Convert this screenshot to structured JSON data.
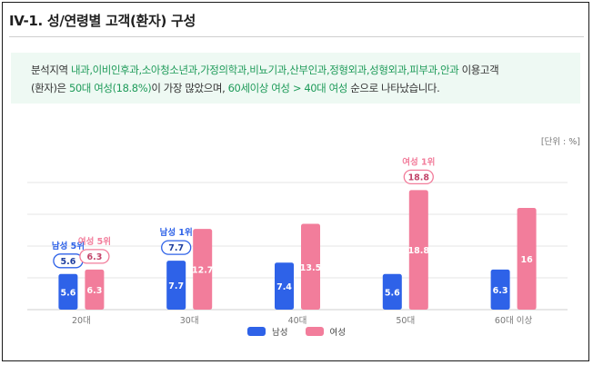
{
  "title": "IV-1. 성/연령별 고객(환자) 구성",
  "summary": {
    "line1_prefix": "분석지역 ",
    "line1_departments": "내과,이비인후과,소아청소년과,가정의학과,비뇨기과,산부인과,정형외과,성형외과,피부과,안과",
    "line1_suffix": " 이용고객",
    "line2_prefix": "(환자)은 ",
    "line2_top_group": "50대 여성(18.8%)",
    "line2_mid": "이 가장 많았으며, ",
    "line2_order": "60세이상 여성 > 40대 여성",
    "line2_suffix": " 순으로 나타났습니다."
  },
  "unit_label": "[단위 : %]",
  "colors": {
    "male": "#2e62e8",
    "female": "#f27d9b",
    "accent_green": "#1f9b5a",
    "panel": "#eef9f3"
  },
  "chart_data": {
    "type": "bar",
    "categories": [
      "20대",
      "30대",
      "40대",
      "50대",
      "60대 이상"
    ],
    "series": [
      {
        "name": "남성",
        "values": [
          5.6,
          7.7,
          7.4,
          5.6,
          6.3
        ]
      },
      {
        "name": "여성",
        "values": [
          6.3,
          12.7,
          13.5,
          18.8,
          16
        ]
      }
    ],
    "ylim": [
      0,
      20
    ],
    "grid": true,
    "legend": "bottom-center",
    "annotations": [
      {
        "series": "남성",
        "category": "20대",
        "label": "남성 5위",
        "value": "5.6"
      },
      {
        "series": "여성",
        "category": "20대",
        "label": "여성 5위",
        "value": "6.3"
      },
      {
        "series": "남성",
        "category": "30대",
        "label": "남성 1위",
        "value": "7.7"
      },
      {
        "series": "여성",
        "category": "50대",
        "label": "여성 1위",
        "value": "18.8"
      }
    ]
  }
}
